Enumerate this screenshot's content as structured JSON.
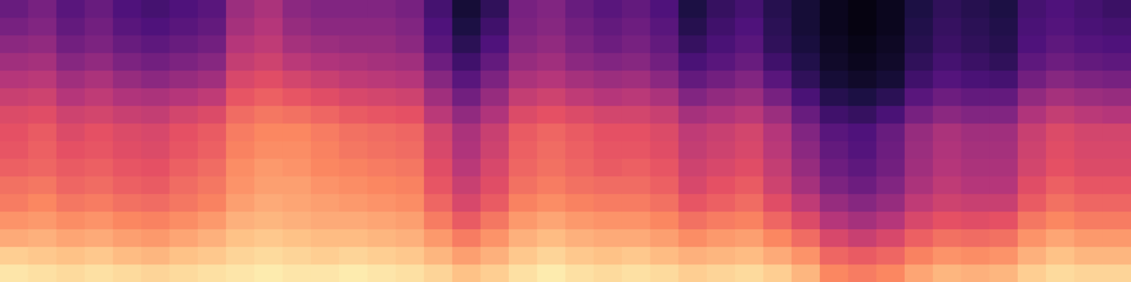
{
  "chart_data": {
    "type": "heatmap",
    "tick_labels": false,
    "grid": false,
    "zlim": [
      -80,
      0
    ],
    "cells": [
      [
        -4,
        -8,
        -14,
        -18,
        -22,
        -24,
        -27,
        -29,
        -30,
        -32,
        -36,
        -40,
        -44,
        -48,
        -52,
        -55
      ],
      [
        -5,
        -9,
        -13,
        -17,
        -20,
        -23,
        -26,
        -27,
        -28,
        -31,
        -35,
        -39,
        -43,
        -47,
        -50,
        -52
      ],
      [
        -6,
        -10,
        -15,
        -19,
        -23,
        -26,
        -28,
        -30,
        -32,
        -35,
        -40,
        -44,
        -49,
        -53,
        -56,
        -58
      ],
      [
        -5,
        -9,
        -14,
        -18,
        -22,
        -25,
        -27,
        -29,
        -30,
        -34,
        -38,
        -42,
        -47,
        -51,
        -53,
        -55
      ],
      [
        -6,
        -11,
        -16,
        -20,
        -24,
        -27,
        -29,
        -31,
        -32,
        -36,
        -41,
        -46,
        -51,
        -55,
        -58,
        -60
      ],
      [
        -7,
        -12,
        -17,
        -21,
        -25,
        -28,
        -30,
        -32,
        -33,
        -37,
        -42,
        -48,
        -53,
        -57,
        -60,
        -62
      ],
      [
        -6,
        -10,
        -15,
        -19,
        -23,
        -25,
        -27,
        -29,
        -30,
        -34,
        -40,
        -46,
        -51,
        -55,
        -58,
        -60
      ],
      [
        -5,
        -9,
        -13,
        -17,
        -21,
        -23,
        -25,
        -27,
        -28,
        -32,
        -38,
        -44,
        -49,
        -53,
        -56,
        -58
      ],
      [
        -4,
        -7,
        -10,
        -13,
        -16,
        -18,
        -19,
        -21,
        -22,
        -25,
        -29,
        -33,
        -37,
        -40,
        -43,
        -45
      ],
      [
        -3,
        -6,
        -9,
        -12,
        -14,
        -16,
        -17,
        -19,
        -20,
        -23,
        -27,
        -31,
        -35,
        -38,
        -40,
        -42
      ],
      [
        -4,
        -7,
        -10,
        -13,
        -15,
        -16,
        -18,
        -19,
        -20,
        -24,
        -29,
        -34,
        -39,
        -43,
        -46,
        -48
      ],
      [
        -4,
        -8,
        -11,
        -14,
        -16,
        -18,
        -20,
        -21,
        -22,
        -26,
        -31,
        -36,
        -41,
        -45,
        -48,
        -50
      ],
      [
        -3,
        -7,
        -11,
        -14,
        -17,
        -19,
        -21,
        -23,
        -24,
        -28,
        -33,
        -38,
        -42,
        -46,
        -48,
        -50
      ],
      [
        -4,
        -8,
        -12,
        -15,
        -18,
        -20,
        -22,
        -24,
        -25,
        -29,
        -34,
        -39,
        -43,
        -46,
        -48,
        -50
      ],
      [
        -5,
        -9,
        -13,
        -16,
        -19,
        -21,
        -23,
        -25,
        -26,
        -30,
        -35,
        -40,
        -44,
        -48,
        -50,
        -52
      ],
      [
        -7,
        -12,
        -17,
        -22,
        -26,
        -29,
        -31,
        -33,
        -34,
        -39,
        -44,
        -49,
        -54,
        -58,
        -60,
        -62
      ],
      [
        -10,
        -16,
        -22,
        -28,
        -33,
        -36,
        -39,
        -41,
        -42,
        -47,
        -53,
        -58,
        -63,
        -67,
        -70,
        -72
      ],
      [
        -8,
        -13,
        -18,
        -23,
        -28,
        -31,
        -33,
        -35,
        -36,
        -41,
        -46,
        -51,
        -56,
        -60,
        -63,
        -66
      ],
      [
        -5,
        -9,
        -13,
        -17,
        -21,
        -24,
        -26,
        -27,
        -28,
        -32,
        -37,
        -42,
        -46,
        -49,
        -51,
        -52
      ],
      [
        -3,
        -7,
        -11,
        -15,
        -19,
        -22,
        -24,
        -25,
        -26,
        -30,
        -35,
        -40,
        -44,
        -47,
        -49,
        -50
      ],
      [
        -5,
        -9,
        -13,
        -17,
        -21,
        -24,
        -26,
        -27,
        -28,
        -32,
        -38,
        -43,
        -48,
        -51,
        -53,
        -55
      ],
      [
        -6,
        -10,
        -14,
        -18,
        -22,
        -25,
        -28,
        -29,
        -30,
        -34,
        -40,
        -45,
        -50,
        -54,
        -56,
        -58
      ],
      [
        -5,
        -9,
        -14,
        -18,
        -22,
        -25,
        -27,
        -29,
        -30,
        -34,
        -39,
        -44,
        -49,
        -52,
        -54,
        -56
      ],
      [
        -6,
        -11,
        -16,
        -20,
        -24,
        -27,
        -29,
        -31,
        -32,
        -36,
        -42,
        -48,
        -53,
        -56,
        -58,
        -60
      ],
      [
        -8,
        -13,
        -19,
        -24,
        -29,
        -33,
        -35,
        -37,
        -38,
        -43,
        -50,
        -56,
        -61,
        -65,
        -68,
        -70
      ],
      [
        -7,
        -12,
        -17,
        -22,
        -27,
        -30,
        -33,
        -35,
        -36,
        -41,
        -47,
        -53,
        -58,
        -61,
        -63,
        -65
      ],
      [
        -6,
        -11,
        -16,
        -21,
        -25,
        -28,
        -31,
        -33,
        -34,
        -39,
        -45,
        -50,
        -55,
        -58,
        -60,
        -62
      ],
      [
        -8,
        -14,
        -20,
        -26,
        -31,
        -35,
        -37,
        -39,
        -40,
        -45,
        -52,
        -58,
        -63,
        -66,
        -67,
        -68
      ],
      [
        -12,
        -18,
        -25,
        -32,
        -38,
        -43,
        -46,
        -48,
        -50,
        -55,
        -61,
        -66,
        -69,
        -71,
        -72,
        -72
      ],
      [
        -20,
        -26,
        -33,
        -40,
        -46,
        -51,
        -54,
        -56,
        -58,
        -63,
        -68,
        -72,
        -74,
        -75,
        -76,
        -76
      ],
      [
        -22,
        -28,
        -36,
        -43,
        -49,
        -54,
        -57,
        -59,
        -60,
        -65,
        -70,
        -74,
        -76,
        -77,
        -78,
        -78
      ],
      [
        -20,
        -26,
        -33,
        -40,
        -46,
        -50,
        -53,
        -54,
        -55,
        -61,
        -67,
        -72,
        -74,
        -75,
        -76,
        -76
      ],
      [
        -15,
        -21,
        -27,
        -33,
        -38,
        -42,
        -44,
        -45,
        -46,
        -52,
        -58,
        -63,
        -66,
        -68,
        -69,
        -70
      ],
      [
        -12,
        -18,
        -24,
        -30,
        -35,
        -38,
        -40,
        -41,
        -42,
        -48,
        -54,
        -59,
        -62,
        -64,
        -65,
        -66
      ],
      [
        -13,
        -19,
        -25,
        -31,
        -36,
        -40,
        -42,
        -43,
        -44,
        -50,
        -56,
        -61,
        -64,
        -66,
        -67,
        -68
      ],
      [
        -12,
        -18,
        -24,
        -30,
        -36,
        -40,
        -42,
        -43,
        -44,
        -50,
        -56,
        -62,
        -66,
        -68,
        -69,
        -70
      ],
      [
        -8,
        -13,
        -18,
        -23,
        -28,
        -31,
        -34,
        -35,
        -36,
        -41,
        -47,
        -53,
        -57,
        -60,
        -61,
        -62
      ],
      [
        -6,
        -10,
        -15,
        -20,
        -24,
        -27,
        -30,
        -31,
        -32,
        -37,
        -43,
        -49,
        -54,
        -57,
        -59,
        -60
      ],
      [
        -7,
        -12,
        -17,
        -22,
        -26,
        -29,
        -32,
        -33,
        -34,
        -39,
        -45,
        -51,
        -56,
        -59,
        -61,
        -62
      ],
      [
        -7,
        -12,
        -17,
        -22,
        -26,
        -29,
        -32,
        -33,
        -34,
        -40,
        -46,
        -52,
        -57,
        -60,
        -62,
        -64
      ]
    ]
  }
}
